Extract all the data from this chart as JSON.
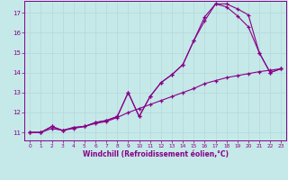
{
  "xlabel": "Windchill (Refroidissement éolien,°C)",
  "bg_color": "#c5e8e8",
  "line_color": "#880088",
  "grid_color": "#b8dada",
  "xlim": [
    -0.5,
    23.5
  ],
  "ylim": [
    10.6,
    17.6
  ],
  "xticks": [
    0,
    1,
    2,
    3,
    4,
    5,
    6,
    7,
    8,
    9,
    10,
    11,
    12,
    13,
    14,
    15,
    16,
    17,
    18,
    19,
    20,
    21,
    22,
    23
  ],
  "yticks": [
    11,
    12,
    13,
    14,
    15,
    16,
    17
  ],
  "line1_x": [
    0,
    1,
    2,
    3,
    4,
    5,
    6,
    7,
    8,
    9,
    10,
    11,
    12,
    13,
    14,
    15,
    16,
    17,
    18,
    19,
    20,
    21,
    22,
    23
  ],
  "line1_y": [
    11.0,
    11.0,
    11.3,
    11.1,
    11.25,
    11.3,
    11.5,
    11.6,
    11.8,
    13.0,
    11.8,
    12.8,
    13.5,
    13.9,
    14.4,
    15.6,
    16.6,
    17.45,
    17.45,
    17.2,
    16.9,
    15.0,
    14.0,
    14.2
  ],
  "line2_x": [
    0,
    1,
    2,
    3,
    4,
    5,
    6,
    7,
    8,
    9,
    10,
    11,
    12,
    13,
    14,
    15,
    16,
    17,
    18,
    19,
    20,
    21,
    22,
    23
  ],
  "line2_y": [
    11.0,
    11.0,
    11.3,
    11.1,
    11.25,
    11.3,
    11.5,
    11.6,
    11.8,
    13.0,
    11.8,
    12.8,
    13.5,
    13.9,
    14.4,
    15.6,
    16.8,
    17.45,
    17.3,
    16.85,
    16.3,
    15.0,
    14.0,
    14.2
  ],
  "line3_x": [
    0,
    1,
    2,
    3,
    4,
    5,
    6,
    7,
    8,
    9,
    10,
    11,
    12,
    13,
    14,
    15,
    16,
    17,
    18,
    19,
    20,
    21,
    22,
    23
  ],
  "line3_y": [
    11.0,
    11.0,
    11.2,
    11.1,
    11.2,
    11.3,
    11.45,
    11.55,
    11.75,
    12.0,
    12.2,
    12.4,
    12.6,
    12.8,
    13.0,
    13.2,
    13.45,
    13.6,
    13.75,
    13.85,
    13.95,
    14.05,
    14.12,
    14.2
  ]
}
